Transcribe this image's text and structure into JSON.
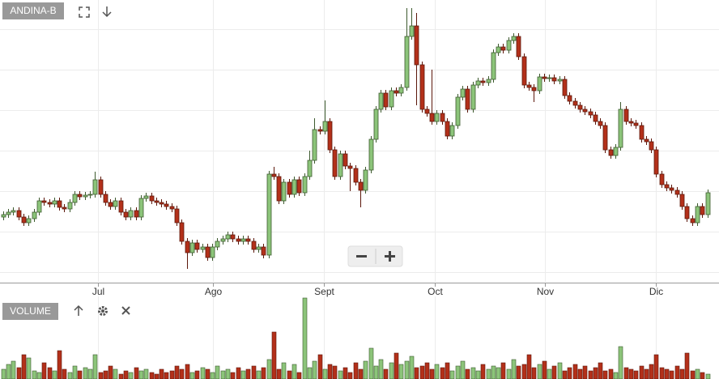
{
  "chart_data": {
    "type": "candlestick",
    "title": "ANDINA-B",
    "volume_label": "VOLUME",
    "xlim": [
      -0.6,
      140.3
    ],
    "ylim": [
      1676,
      2372
    ],
    "yticks": [
      1700,
      1800,
      1900,
      2000,
      2100,
      2200,
      2300
    ],
    "vlim": [
      0,
      102
    ],
    "grid": true,
    "up_color": "#8cc47a",
    "down_color": "#b3301a",
    "xticks": [
      {
        "value": 18.6,
        "label": "Jul"
      },
      {
        "value": 41.1,
        "label": "Ago"
      },
      {
        "value": 62.9,
        "label": "Sept"
      },
      {
        "value": 84.6,
        "label": "Oct"
      },
      {
        "value": 106.2,
        "label": "Nov"
      },
      {
        "value": 127.9,
        "label": "Dic"
      }
    ],
    "open": [
      1836,
      1842,
      1848,
      1852,
      1836,
      1822,
      1832,
      1848,
      1876,
      1872,
      1868,
      1876,
      1860,
      1856,
      1872,
      1892,
      1886,
      1890,
      1892,
      1928,
      1892,
      1872,
      1862,
      1876,
      1848,
      1836,
      1852,
      1836,
      1882,
      1888,
      1876,
      1872,
      1868,
      1862,
      1856,
      1822,
      1776,
      1748,
      1772,
      1756,
      1762,
      1736,
      1762,
      1776,
      1782,
      1792,
      1782,
      1776,
      1782,
      1776,
      1756,
      1762,
      1742,
      1942,
      1936,
      1876,
      1922,
      1892,
      1928,
      1896,
      1936,
      1976,
      2052,
      2048,
      2072,
      2002,
      1936,
      1992,
      1962,
      1956,
      1922,
      1902,
      1952,
      2028,
      2102,
      2142,
      2108,
      2148,
      2142,
      2156,
      2282,
      2308,
      2212,
      2102,
      2092,
      2072,
      2092,
      2072,
      2036,
      2062,
      2132,
      2152,
      2102,
      2162,
      2172,
      2168,
      2176,
      2242,
      2256,
      2248,
      2272,
      2282,
      2232,
      2162,
      2156,
      2148,
      2182,
      2178,
      2180,
      2172,
      2176,
      2136,
      2122,
      2112,
      2102,
      2096,
      2088,
      2072,
      2062,
      2002,
      1988,
      2008,
      2102,
      2072,
      2068,
      2062,
      2028,
      2022,
      2002,
      1942,
      1916,
      1908,
      1902,
      1892,
      1862,
      1832,
      1822,
      1862,
      1842
    ],
    "high": [
      1850,
      1856,
      1860,
      1860,
      1844,
      1840,
      1856,
      1884,
      1884,
      1880,
      1884,
      1884,
      1868,
      1880,
      1900,
      1900,
      1898,
      1900,
      1948,
      1936,
      1900,
      1880,
      1884,
      1884,
      1856,
      1860,
      1860,
      1890,
      1896,
      1896,
      1884,
      1880,
      1876,
      1870,
      1864,
      1830,
      1784,
      1780,
      1780,
      1770,
      1770,
      1770,
      1784,
      1790,
      1800,
      1800,
      1790,
      1790,
      1790,
      1784,
      1770,
      1770,
      1950,
      1960,
      1944,
      1930,
      1930,
      1936,
      1936,
      1944,
      2000,
      2080,
      2060,
      2124,
      2080,
      2010,
      2000,
      2000,
      1970,
      1964,
      1930,
      1960,
      2036,
      2110,
      2150,
      2150,
      2156,
      2156,
      2164,
      2352,
      2352,
      2340,
      2220,
      2110,
      2200,
      2100,
      2100,
      2080,
      2070,
      2140,
      2160,
      2160,
      2170,
      2180,
      2180,
      2184,
      2250,
      2264,
      2264,
      2280,
      2290,
      2290,
      2240,
      2170,
      2164,
      2190,
      2190,
      2188,
      2188,
      2184,
      2184,
      2144,
      2130,
      2120,
      2110,
      2104,
      2096,
      2080,
      2070,
      2010,
      2016,
      2120,
      2110,
      2080,
      2076,
      2070,
      2036,
      2030,
      2010,
      1950,
      1924,
      1916,
      1910,
      1900,
      1870,
      1840,
      1870,
      1870,
      1904
    ],
    "low": [
      1828,
      1834,
      1840,
      1828,
      1814,
      1814,
      1824,
      1840,
      1864,
      1860,
      1860,
      1852,
      1848,
      1848,
      1864,
      1878,
      1878,
      1882,
      1884,
      1884,
      1864,
      1854,
      1854,
      1840,
      1828,
      1828,
      1828,
      1828,
      1874,
      1868,
      1864,
      1860,
      1854,
      1848,
      1814,
      1768,
      1708,
      1740,
      1748,
      1748,
      1728,
      1728,
      1754,
      1768,
      1774,
      1774,
      1768,
      1768,
      1768,
      1748,
      1748,
      1734,
      1734,
      1928,
      1868,
      1868,
      1884,
      1884,
      1888,
      1888,
      1928,
      1968,
      2040,
      2040,
      1994,
      1928,
      1928,
      1954,
      1900,
      1914,
      1860,
      1894,
      1944,
      2020,
      2094,
      2100,
      2100,
      2134,
      2134,
      2148,
      2274,
      2112,
      2094,
      2084,
      2064,
      2064,
      2064,
      2028,
      2028,
      2054,
      2124,
      2094,
      2094,
      2154,
      2160,
      2160,
      2168,
      2234,
      2240,
      2240,
      2264,
      2224,
      2154,
      2148,
      2120,
      2140,
      2170,
      2170,
      2164,
      2164,
      2128,
      2114,
      2104,
      2094,
      2088,
      2080,
      2064,
      2054,
      1994,
      1980,
      1980,
      2000,
      2064,
      2060,
      2054,
      2020,
      2014,
      1994,
      1934,
      1908,
      1900,
      1894,
      1884,
      1854,
      1824,
      1814,
      1814,
      1834,
      1834
    ],
    "close": [
      1842,
      1848,
      1852,
      1836,
      1822,
      1832,
      1848,
      1876,
      1872,
      1868,
      1876,
      1860,
      1856,
      1872,
      1892,
      1886,
      1890,
      1892,
      1928,
      1892,
      1872,
      1862,
      1876,
      1848,
      1836,
      1852,
      1836,
      1882,
      1888,
      1876,
      1872,
      1868,
      1862,
      1856,
      1822,
      1776,
      1748,
      1772,
      1756,
      1762,
      1736,
      1762,
      1776,
      1782,
      1792,
      1782,
      1776,
      1782,
      1776,
      1756,
      1762,
      1742,
      1942,
      1936,
      1876,
      1922,
      1892,
      1928,
      1896,
      1936,
      1976,
      2052,
      2048,
      2072,
      2002,
      1936,
      1992,
      1962,
      1956,
      1922,
      1902,
      1952,
      2028,
      2102,
      2142,
      2108,
      2148,
      2142,
      2156,
      2282,
      2308,
      2212,
      2102,
      2092,
      2072,
      2092,
      2072,
      2036,
      2062,
      2132,
      2152,
      2102,
      2162,
      2172,
      2168,
      2176,
      2242,
      2256,
      2248,
      2272,
      2282,
      2232,
      2162,
      2156,
      2148,
      2182,
      2178,
      2180,
      2172,
      2176,
      2136,
      2122,
      2112,
      2102,
      2096,
      2088,
      2072,
      2062,
      2002,
      1988,
      2008,
      2102,
      2072,
      2068,
      2062,
      2028,
      2022,
      2002,
      1942,
      1916,
      1908,
      1902,
      1892,
      1862,
      1832,
      1822,
      1862,
      1842,
      1896
    ],
    "volume": [
      12,
      18,
      22,
      14,
      30,
      26,
      10,
      8,
      20,
      14,
      10,
      35,
      12,
      8,
      16,
      10,
      14,
      12,
      30,
      8,
      10,
      16,
      12,
      6,
      10,
      8,
      14,
      10,
      12,
      8,
      6,
      12,
      8,
      10,
      16,
      12,
      18,
      8,
      10,
      14,
      12,
      8,
      16,
      10,
      12,
      8,
      14,
      10,
      12,
      16,
      10,
      14,
      24,
      58,
      12,
      20,
      10,
      18,
      8,
      100,
      14,
      22,
      30,
      12,
      18,
      16,
      10,
      14,
      8,
      20,
      12,
      22,
      38,
      16,
      24,
      12,
      20,
      32,
      18,
      22,
      28,
      14,
      16,
      20,
      12,
      18,
      14,
      20,
      10,
      16,
      22,
      12,
      14,
      10,
      18,
      12,
      16,
      14,
      20,
      12,
      24,
      16,
      18,
      30,
      14,
      18,
      22,
      12,
      16,
      20,
      10,
      14,
      18,
      12,
      16,
      10,
      14,
      20,
      10,
      12,
      8,
      40,
      14,
      12,
      10,
      16,
      12,
      18,
      30,
      14,
      12,
      10,
      16,
      12,
      32,
      10,
      12,
      8,
      6
    ]
  }
}
